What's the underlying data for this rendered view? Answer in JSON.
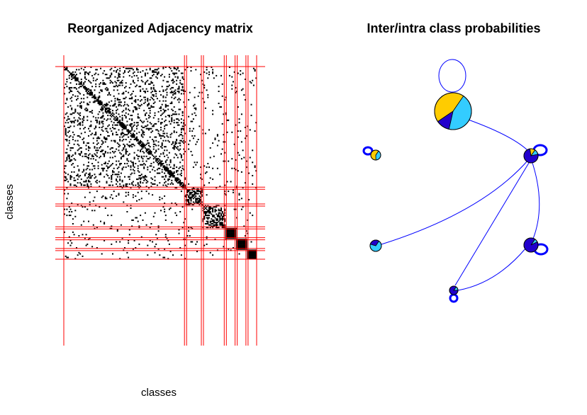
{
  "left_panel": {
    "title": "Reorganized Adjacency matrix",
    "xlabel": "classes",
    "ylabel": "classes"
  },
  "right_panel": {
    "title": "Inter/intra class probabilities"
  },
  "colors": {
    "matrix_fill": "#000000",
    "boundary": "#ff0000",
    "edge": "#0000ff",
    "pie_cyan": "#33ccff",
    "pie_gold": "#ffcc00",
    "pie_blue": "#2200cc",
    "pie_red": "#ff2200"
  },
  "chart_data": [
    {
      "type": "heatmap",
      "title": "Reorganized Adjacency matrix",
      "xlabel": "classes",
      "ylabel": "classes",
      "grid": false,
      "class_block_fractions": [
        0.634,
        0.09,
        0.117,
        0.054,
        0.054,
        0.051
      ],
      "diagonal_density": [
        0.15,
        0.35,
        0.4,
        1.0,
        1.0,
        1.0
      ]
    },
    {
      "type": "network",
      "title": "Inter/intra class probabilities",
      "nodes": [
        {
          "id": 1,
          "size": 1.0,
          "self_loop": true,
          "pie": [
            {
              "color": "pie_cyan",
              "value": 0.44
            },
            {
              "color": "pie_blue",
              "value": 0.12
            },
            {
              "color": "pie_gold",
              "value": 0.44
            }
          ]
        },
        {
          "id": 2,
          "size": 0.3,
          "self_loop": true,
          "pie": [
            {
              "color": "pie_cyan",
              "value": 0.4
            },
            {
              "color": "pie_gold",
              "value": 0.6
            }
          ]
        },
        {
          "id": 3,
          "size": 0.35,
          "self_loop": true,
          "pie": [
            {
              "color": "pie_cyan",
              "value": 0.12
            },
            {
              "color": "pie_blue",
              "value": 0.76
            },
            {
              "color": "pie_gold",
              "value": 0.12
            }
          ]
        },
        {
          "id": 4,
          "size": 0.32,
          "self_loop": false,
          "pie": [
            {
              "color": "pie_cyan",
              "value": 0.7
            },
            {
              "color": "pie_blue",
              "value": 0.3
            }
          ]
        },
        {
          "id": 5,
          "size": 0.35,
          "self_loop": true,
          "pie": [
            {
              "color": "pie_cyan",
              "value": 0.08
            },
            {
              "color": "pie_blue",
              "value": 0.92
            }
          ]
        },
        {
          "id": 6,
          "size": 0.25,
          "self_loop": true,
          "pie": [
            {
              "color": "pie_cyan",
              "value": 0.15
            },
            {
              "color": "pie_blue",
              "value": 0.85
            }
          ]
        }
      ],
      "edges": [
        [
          1,
          3
        ],
        [
          3,
          4
        ],
        [
          3,
          5
        ],
        [
          3,
          6
        ],
        [
          5,
          6
        ]
      ]
    }
  ]
}
